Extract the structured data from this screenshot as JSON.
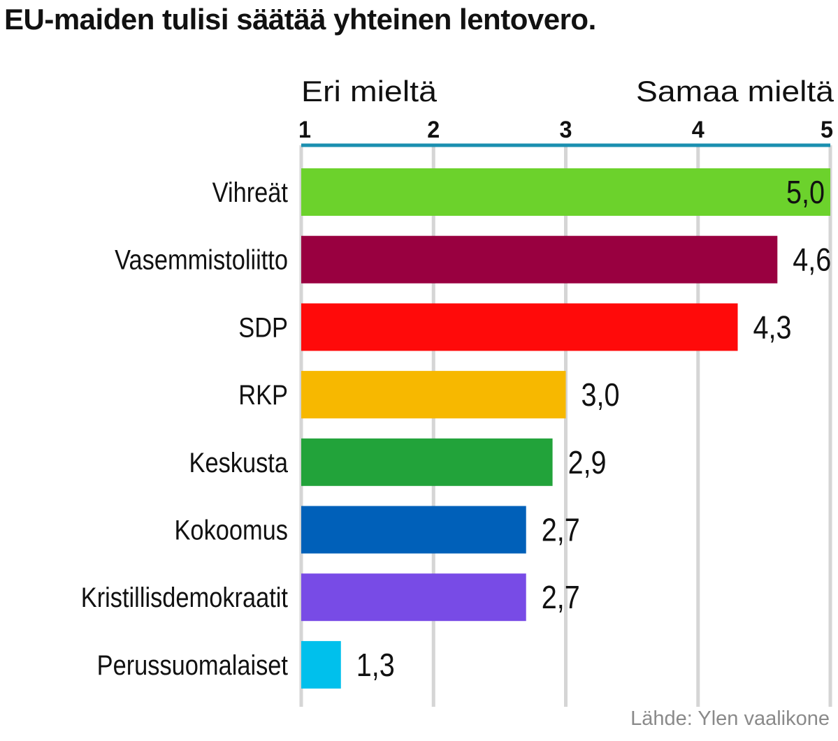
{
  "chart_data": {
    "type": "bar",
    "orientation": "horizontal",
    "title": "EU-maiden tulisi säätää yhteinen lentovero.",
    "scale_left_label": "Eri mieltä",
    "scale_right_label": "Samaa mieltä",
    "xlim": [
      1,
      5
    ],
    "ticks": [
      1,
      2,
      3,
      4,
      5
    ],
    "grid": true,
    "categories": [
      "Vihreät",
      "Vasemmistoliitto",
      "SDP",
      "RKP",
      "Keskusta",
      "Kokoomus",
      "Kristillisdemokraatit",
      "Perussuomalaiset"
    ],
    "values": [
      5.0,
      4.6,
      4.3,
      3.0,
      2.9,
      2.7,
      2.7,
      1.3
    ],
    "value_labels": [
      "5,0",
      "4,6",
      "4,3",
      "3,0",
      "2,9",
      "2,7",
      "2,7",
      "1,3"
    ],
    "colors": [
      "#6cd22c",
      "#990040",
      "#ff0a0a",
      "#f7b800",
      "#22a33a",
      "#0060b9",
      "#784be6",
      "#00c0ec"
    ],
    "axis_color": "#1b8fb0",
    "grid_color": "#d5d5d5",
    "source": "Lähde: Ylen vaalikone"
  }
}
